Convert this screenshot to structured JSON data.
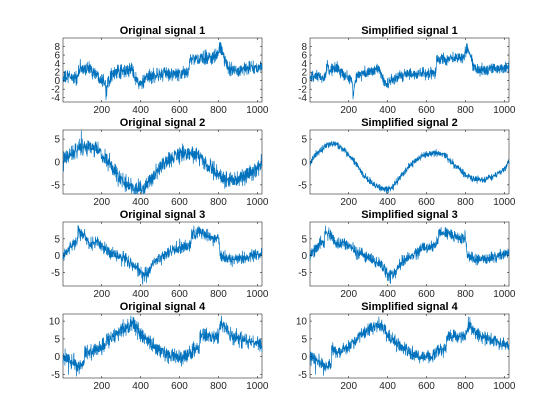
{
  "figure": {
    "background": "#ffffff",
    "line_color": "#0072bd",
    "axis_color": "#262626"
  },
  "chart_data": [
    {
      "type": "line",
      "title": "Original signal 1",
      "xlim": [
        1,
        1024
      ],
      "ylim": [
        -5,
        10
      ],
      "xticks": [
        200,
        400,
        600,
        800,
        1000
      ],
      "yticks": [
        -4,
        -2,
        0,
        2,
        4,
        6,
        8
      ],
      "noise": 1.0,
      "knots": [
        [
          1,
          0.5
        ],
        [
          40,
          1
        ],
        [
          75,
          0.5
        ],
        [
          90,
          3
        ],
        [
          100,
          2.5
        ],
        [
          130,
          3
        ],
        [
          150,
          2.5
        ],
        [
          170,
          1.5
        ],
        [
          200,
          0.5
        ],
        [
          218,
          0
        ],
        [
          225,
          -3
        ],
        [
          232,
          0
        ],
        [
          250,
          1.5
        ],
        [
          300,
          2
        ],
        [
          340,
          2.5
        ],
        [
          360,
          2.5
        ],
        [
          380,
          0
        ],
        [
          400,
          -1
        ],
        [
          420,
          0
        ],
        [
          450,
          1
        ],
        [
          500,
          1.5
        ],
        [
          560,
          1.5
        ],
        [
          620,
          1.5
        ],
        [
          650,
          2.5
        ],
        [
          652,
          5
        ],
        [
          700,
          5
        ],
        [
          760,
          5.5
        ],
        [
          795,
          6
        ],
        [
          810,
          7.5
        ],
        [
          825,
          6
        ],
        [
          845,
          3
        ],
        [
          900,
          2.5
        ],
        [
          960,
          3
        ],
        [
          1024,
          3
        ]
      ],
      "spikes": [
        [
          222,
          -4.5
        ],
        [
          224,
          -3.8
        ],
        [
          226,
          -3.5
        ],
        [
          805,
          9
        ],
        [
          808,
          8.5
        ],
        [
          812,
          8.8
        ],
        [
          90,
          5
        ]
      ]
    },
    {
      "type": "line",
      "title": "Simplified signal 1",
      "xlim": [
        1,
        1024
      ],
      "ylim": [
        -5,
        10
      ],
      "xticks": [
        200,
        400,
        600,
        800,
        1000
      ],
      "yticks": [
        -4,
        -2,
        0,
        2,
        4,
        6,
        8
      ],
      "noise": 0.85,
      "knots": [
        [
          1,
          0.5
        ],
        [
          40,
          1
        ],
        [
          75,
          0.5
        ],
        [
          90,
          3
        ],
        [
          100,
          2.5
        ],
        [
          130,
          3
        ],
        [
          150,
          2.5
        ],
        [
          170,
          1.5
        ],
        [
          200,
          0.5
        ],
        [
          218,
          0
        ],
        [
          225,
          -3
        ],
        [
          232,
          0
        ],
        [
          250,
          1.5
        ],
        [
          300,
          2
        ],
        [
          340,
          2.5
        ],
        [
          360,
          2.5
        ],
        [
          380,
          0
        ],
        [
          400,
          -1
        ],
        [
          420,
          0
        ],
        [
          450,
          1
        ],
        [
          500,
          1.5
        ],
        [
          560,
          1.5
        ],
        [
          620,
          1.5
        ],
        [
          650,
          2.5
        ],
        [
          652,
          5
        ],
        [
          700,
          5
        ],
        [
          760,
          5.5
        ],
        [
          795,
          6
        ],
        [
          810,
          7.5
        ],
        [
          825,
          6
        ],
        [
          845,
          3
        ],
        [
          900,
          2.5
        ],
        [
          960,
          3
        ],
        [
          1024,
          3
        ]
      ],
      "spikes": [
        [
          222,
          -4.3
        ],
        [
          225,
          -3.6
        ],
        [
          805,
          8.7
        ],
        [
          810,
          8.6
        ],
        [
          90,
          4.8
        ]
      ]
    },
    {
      "type": "line",
      "title": "Original signal 2",
      "xlim": [
        1,
        1024
      ],
      "ylim": [
        -7,
        7
      ],
      "xticks": [
        200,
        400,
        600,
        800,
        1000
      ],
      "yticks": [
        -5,
        0,
        5
      ],
      "noise": 1.1,
      "knots": [
        [
          1,
          0
        ],
        [
          40,
          2
        ],
        [
          80,
          3
        ],
        [
          130,
          3.5
        ],
        [
          180,
          2.5
        ],
        [
          230,
          0
        ],
        [
          280,
          -3
        ],
        [
          330,
          -5
        ],
        [
          380,
          -6
        ],
        [
          420,
          -5.5
        ],
        [
          470,
          -3
        ],
        [
          520,
          -0.5
        ],
        [
          580,
          1.5
        ],
        [
          640,
          2
        ],
        [
          690,
          1.5
        ],
        [
          740,
          -0.5
        ],
        [
          790,
          -2.5
        ],
        [
          850,
          -4
        ],
        [
          900,
          -4
        ],
        [
          950,
          -3
        ],
        [
          1000,
          -1.5
        ],
        [
          1024,
          0
        ]
      ],
      "spikes": [
        [
          95,
          6.8
        ],
        [
          380,
          -6.9
        ],
        [
          405,
          -6.9
        ]
      ]
    },
    {
      "type": "line",
      "title": "Simplified signal 2",
      "xlim": [
        1,
        1024
      ],
      "ylim": [
        -7,
        7
      ],
      "xticks": [
        200,
        400,
        600,
        800,
        1000
      ],
      "yticks": [
        -5,
        0,
        5
      ],
      "noise": 0.45,
      "knots": [
        [
          1,
          0
        ],
        [
          40,
          2
        ],
        [
          80,
          3.5
        ],
        [
          130,
          4
        ],
        [
          180,
          2.5
        ],
        [
          230,
          0
        ],
        [
          280,
          -3
        ],
        [
          330,
          -5
        ],
        [
          380,
          -6
        ],
        [
          420,
          -5.8
        ],
        [
          470,
          -3
        ],
        [
          520,
          -0.5
        ],
        [
          580,
          1.5
        ],
        [
          640,
          2
        ],
        [
          690,
          1.5
        ],
        [
          740,
          -0.5
        ],
        [
          790,
          -2.5
        ],
        [
          850,
          -3.8
        ],
        [
          900,
          -3.8
        ],
        [
          950,
          -3
        ],
        [
          1000,
          -1.5
        ],
        [
          1024,
          0
        ]
      ],
      "spikes": [
        [
          395,
          -6.9
        ]
      ]
    },
    {
      "type": "line",
      "title": "Original signal 3",
      "xlim": [
        1,
        1024
      ],
      "ylim": [
        -9,
        10
      ],
      "xticks": [
        200,
        400,
        600,
        800,
        1000
      ],
      "yticks": [
        -5,
        0,
        5
      ],
      "noise": 1.2,
      "knots": [
        [
          1,
          0
        ],
        [
          30,
          2
        ],
        [
          60,
          4
        ],
        [
          75,
          4
        ],
        [
          78,
          7
        ],
        [
          110,
          6
        ],
        [
          140,
          3
        ],
        [
          170,
          4
        ],
        [
          200,
          3
        ],
        [
          240,
          1
        ],
        [
          280,
          0
        ],
        [
          320,
          -1
        ],
        [
          370,
          -3
        ],
        [
          410,
          -6
        ],
        [
          440,
          -5
        ],
        [
          470,
          -2
        ],
        [
          520,
          0
        ],
        [
          580,
          2
        ],
        [
          640,
          3
        ],
        [
          660,
          4
        ],
        [
          662,
          7
        ],
        [
          720,
          6.5
        ],
        [
          780,
          5
        ],
        [
          800,
          5.5
        ],
        [
          810,
          0
        ],
        [
          860,
          -1
        ],
        [
          920,
          -1
        ],
        [
          980,
          0
        ],
        [
          1024,
          1
        ]
      ],
      "spikes": [
        [
          78,
          9
        ],
        [
          82,
          8.5
        ],
        [
          410,
          -8.5
        ],
        [
          430,
          -8
        ],
        [
          700,
          8.5
        ]
      ]
    },
    {
      "type": "line",
      "title": "Simplified signal 3",
      "xlim": [
        1,
        1024
      ],
      "ylim": [
        -9,
        10
      ],
      "xticks": [
        200,
        400,
        600,
        800,
        1000
      ],
      "yticks": [
        -5,
        0,
        5
      ],
      "noise": 1.05,
      "knots": [
        [
          1,
          0
        ],
        [
          30,
          2
        ],
        [
          60,
          4
        ],
        [
          75,
          4
        ],
        [
          78,
          7
        ],
        [
          110,
          6
        ],
        [
          140,
          3
        ],
        [
          170,
          4
        ],
        [
          200,
          3
        ],
        [
          240,
          1
        ],
        [
          280,
          0
        ],
        [
          320,
          -1
        ],
        [
          370,
          -3
        ],
        [
          410,
          -6
        ],
        [
          440,
          -5
        ],
        [
          470,
          -2
        ],
        [
          520,
          0
        ],
        [
          580,
          2
        ],
        [
          640,
          3
        ],
        [
          660,
          4
        ],
        [
          662,
          7
        ],
        [
          720,
          6.5
        ],
        [
          780,
          5
        ],
        [
          800,
          5.5
        ],
        [
          810,
          0
        ],
        [
          860,
          -1
        ],
        [
          920,
          -1
        ],
        [
          980,
          0
        ],
        [
          1024,
          1
        ]
      ],
      "spikes": [
        [
          80,
          8.8
        ],
        [
          415,
          -8.3
        ],
        [
          700,
          8.2
        ]
      ]
    },
    {
      "type": "line",
      "title": "Original signal 4",
      "xlim": [
        1,
        1024
      ],
      "ylim": [
        -6,
        12
      ],
      "xticks": [
        200,
        400,
        600,
        800,
        1000
      ],
      "yticks": [
        -5,
        0,
        5,
        10
      ],
      "noise": 1.3,
      "knots": [
        [
          1,
          0
        ],
        [
          40,
          -1
        ],
        [
          80,
          -3
        ],
        [
          110,
          -2
        ],
        [
          112,
          2
        ],
        [
          150,
          1
        ],
        [
          200,
          3
        ],
        [
          260,
          6
        ],
        [
          320,
          8
        ],
        [
          360,
          9
        ],
        [
          380,
          8
        ],
        [
          400,
          6
        ],
        [
          420,
          5
        ],
        [
          460,
          3
        ],
        [
          520,
          1
        ],
        [
          580,
          0
        ],
        [
          620,
          0
        ],
        [
          650,
          1
        ],
        [
          680,
          2
        ],
        [
          700,
          2
        ],
        [
          705,
          6
        ],
        [
          760,
          5.5
        ],
        [
          800,
          6
        ],
        [
          815,
          9
        ],
        [
          840,
          8
        ],
        [
          860,
          6
        ],
        [
          920,
          5
        ],
        [
          980,
          4
        ],
        [
          1024,
          3
        ]
      ],
      "spikes": [
        [
          30,
          -5
        ],
        [
          70,
          -5.5
        ],
        [
          350,
          11.5
        ],
        [
          365,
          11
        ],
        [
          815,
          11.5
        ]
      ]
    },
    {
      "type": "line",
      "title": "Simplified signal 4",
      "xlim": [
        1,
        1024
      ],
      "ylim": [
        -6,
        12
      ],
      "xticks": [
        200,
        400,
        600,
        800,
        1000
      ],
      "yticks": [
        -5,
        0,
        5,
        10
      ],
      "noise": 1.1,
      "knots": [
        [
          1,
          0
        ],
        [
          40,
          -1
        ],
        [
          80,
          -3
        ],
        [
          110,
          -2
        ],
        [
          112,
          2
        ],
        [
          150,
          1
        ],
        [
          200,
          3
        ],
        [
          260,
          6
        ],
        [
          320,
          8
        ],
        [
          360,
          9
        ],
        [
          380,
          8
        ],
        [
          400,
          6
        ],
        [
          420,
          5
        ],
        [
          460,
          3
        ],
        [
          520,
          1
        ],
        [
          580,
          0
        ],
        [
          620,
          0
        ],
        [
          650,
          1
        ],
        [
          680,
          2
        ],
        [
          700,
          2
        ],
        [
          705,
          6
        ],
        [
          760,
          5.5
        ],
        [
          800,
          6
        ],
        [
          815,
          9
        ],
        [
          840,
          8
        ],
        [
          860,
          6
        ],
        [
          920,
          5
        ],
        [
          980,
          4
        ],
        [
          1024,
          3
        ]
      ],
      "spikes": [
        [
          30,
          -5
        ],
        [
          70,
          -5.3
        ],
        [
          355,
          11.2
        ],
        [
          815,
          11.2
        ]
      ]
    }
  ]
}
